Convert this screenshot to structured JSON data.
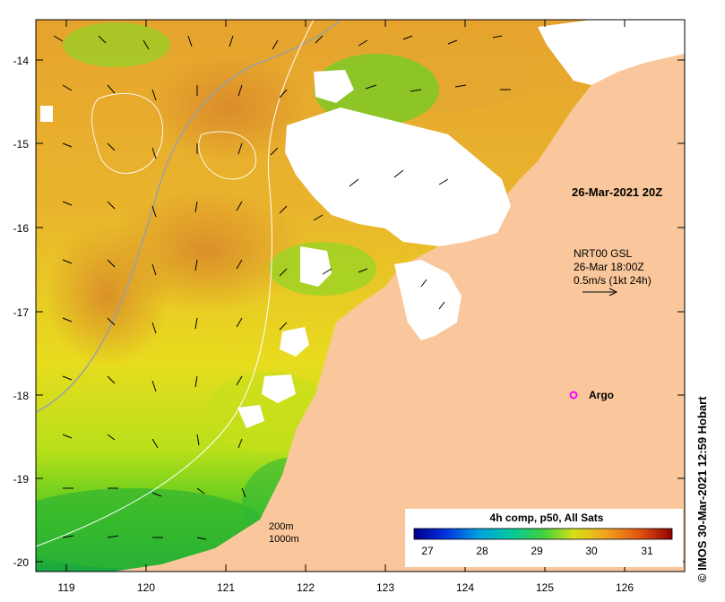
{
  "map": {
    "timestamp_label": "26-Mar-2021 20Z",
    "current_legend": {
      "line1": "NRT00 GSL",
      "line2": "26-Mar 18:00Z",
      "line3": "0.5m/s (1kt 24h)"
    },
    "argo_label": "Argo",
    "isobath_legend": {
      "shallow": "200m",
      "deep": "1000m"
    },
    "colorbar": {
      "title": "4h comp, p50, All Sats",
      "ticks": [
        "27",
        "28",
        "29",
        "30",
        "31"
      ]
    },
    "credit": "© IMOS 30-Mar-2021 12:59 Hobart",
    "x_axis": {
      "ticks": [
        "119",
        "120",
        "121",
        "122",
        "123",
        "124",
        "125",
        "126"
      ]
    },
    "y_axis": {
      "ticks": [
        "-14",
        "-15",
        "-16",
        "-17",
        "-18",
        "-19",
        "-20"
      ]
    },
    "colors": {
      "land": "#f9c79b",
      "cloud": "#ffffff",
      "sst_warm": "#e49a2a",
      "sst_mid": "#f2d21a",
      "sst_cool": "#4ec41f",
      "argo": "#ff00ff"
    }
  }
}
